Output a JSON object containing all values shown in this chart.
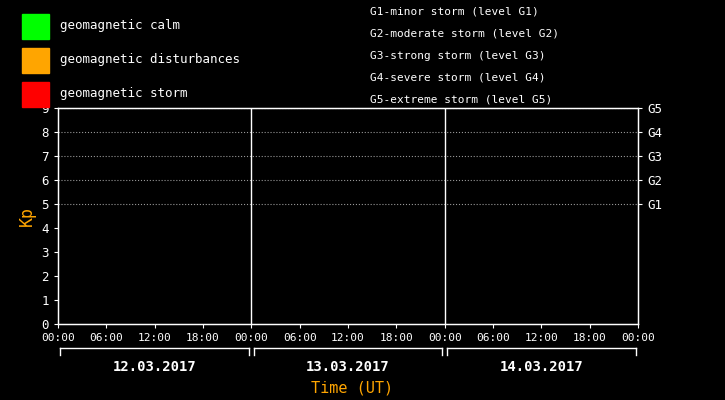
{
  "bg_color": "#000000",
  "plot_bg_color": "#000000",
  "text_color": "#ffffff",
  "axis_color": "#ffffff",
  "title_color": "#ffa500",
  "grid_color": "#ffffff",
  "days": [
    "12.03.2017",
    "13.03.2017",
    "14.03.2017"
  ],
  "time_labels": [
    "00:00",
    "06:00",
    "12:00",
    "18:00",
    "00:00",
    "06:00",
    "12:00",
    "18:00",
    "00:00",
    "06:00",
    "12:00",
    "18:00",
    "00:00"
  ],
  "ylabel": "Kp",
  "xlabel": "Time (UT)",
  "ylim": [
    0,
    9
  ],
  "yticks": [
    0,
    1,
    2,
    3,
    4,
    5,
    6,
    7,
    8,
    9
  ],
  "legend_items": [
    {
      "label": "geomagnetic calm",
      "color": "#00ff00"
    },
    {
      "label": "geomagnetic disturbances",
      "color": "#ffa500"
    },
    {
      "label": "geomagnetic storm",
      "color": "#ff0000"
    }
  ],
  "right_labels": [
    {
      "y": 5,
      "text": "G1"
    },
    {
      "y": 6,
      "text": "G2"
    },
    {
      "y": 7,
      "text": "G3"
    },
    {
      "y": 8,
      "text": "G4"
    },
    {
      "y": 9,
      "text": "G5"
    }
  ],
  "storm_legend": [
    "G1-minor storm (level G1)",
    "G2-moderate storm (level G2)",
    "G3-strong storm (level G3)",
    "G4-severe storm (level G4)",
    "G5-extreme storm (level G5)"
  ],
  "dotted_levels": [
    5,
    6,
    7,
    8,
    9
  ],
  "vline_positions": [
    24,
    48
  ],
  "total_hours": 72,
  "font_size": 9,
  "font_family": "monospace"
}
